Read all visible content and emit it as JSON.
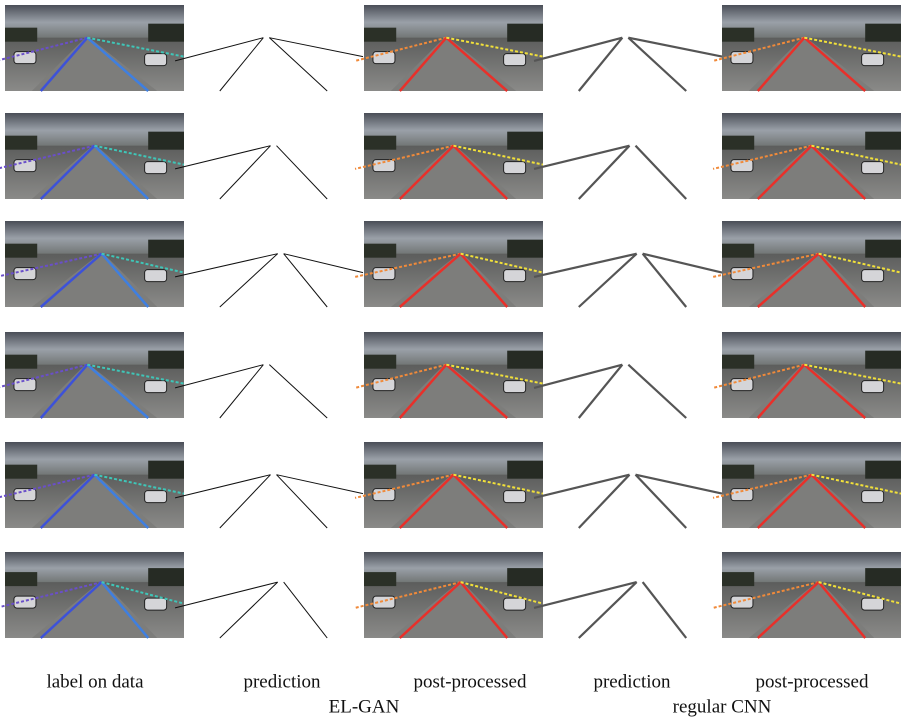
{
  "columns": [
    "label on data",
    "prediction",
    "post-processed",
    "prediction",
    "post-processed"
  ],
  "groups": [
    "EL-GAN",
    "regular CNN"
  ]
}
